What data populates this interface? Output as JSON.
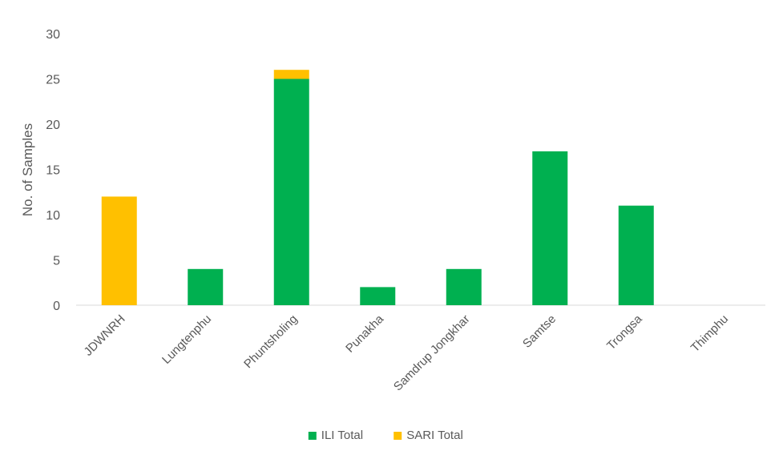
{
  "chart_data": {
    "type": "bar",
    "stacked": true,
    "title": "",
    "xlabel": "",
    "ylabel": "No. of Samples",
    "ylim": [
      0,
      30
    ],
    "yticks": [
      0,
      5,
      10,
      15,
      20,
      25,
      30
    ],
    "grid": false,
    "legend_position": "bottom",
    "categories": [
      "JDWNRH",
      "Lungtenphu",
      "Phuntsholing",
      "Punakha",
      "Samdrup Jongkhar",
      "Samtse",
      "Trongsa",
      "Thimphu"
    ],
    "series": [
      {
        "name": "ILI Total",
        "color": "#00b050",
        "values": [
          0,
          4,
          25,
          2,
          4,
          17,
          11,
          0
        ]
      },
      {
        "name": "SARI Total",
        "color": "#ffc000",
        "values": [
          12,
          0,
          1,
          0,
          0,
          0,
          0,
          0
        ]
      }
    ]
  }
}
